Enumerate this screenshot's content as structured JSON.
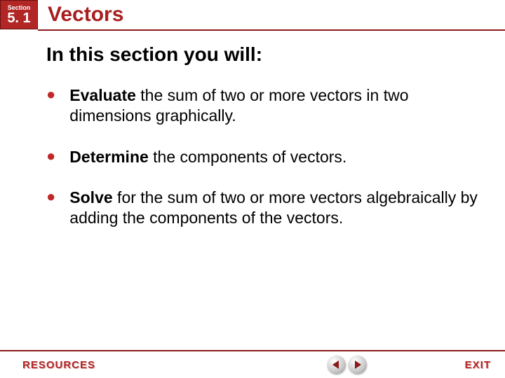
{
  "colors": {
    "brand_red": "#b22626",
    "brand_red_dark": "#8a1a1a",
    "text_black": "#000000",
    "white": "#ffffff"
  },
  "header": {
    "section_label": "Section",
    "section_number": "5. 1",
    "title": "Vectors"
  },
  "section_heading": "In this section you will:",
  "objectives": [
    {
      "keyword": "Evaluate",
      "rest": " the sum of two or more vectors in two dimensions graphically."
    },
    {
      "keyword": "Determine",
      "rest": " the components of vectors."
    },
    {
      "keyword": "Solve",
      "rest": " for the sum of two or more vectors algebraically by adding the components of the vectors."
    }
  ],
  "footer": {
    "resources_label": "RESOURCES",
    "exit_label": "EXIT"
  }
}
